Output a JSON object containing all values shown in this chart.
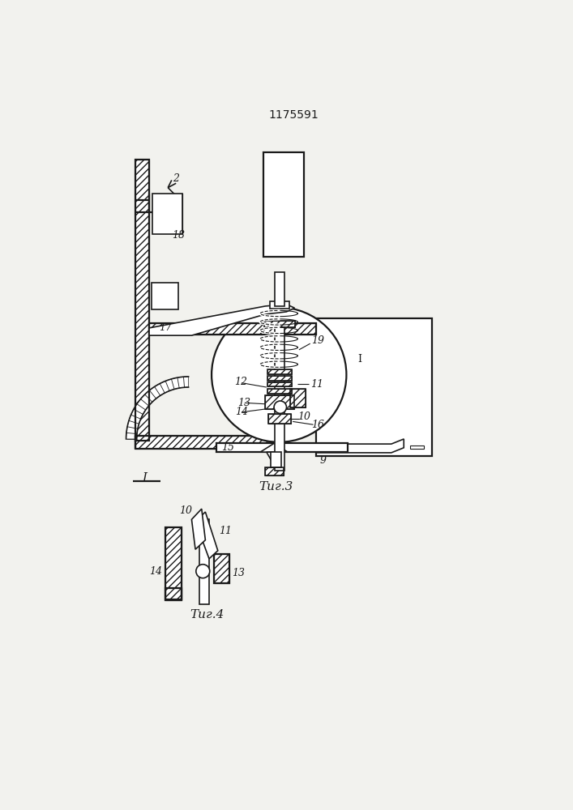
{
  "title": "1175591",
  "bg_color": "#f2f2ee",
  "lc": "#1a1a1a",
  "fig3_caption": "Τиг.3",
  "fig4_caption": "Τиг.4",
  "fig_I_label": "I"
}
